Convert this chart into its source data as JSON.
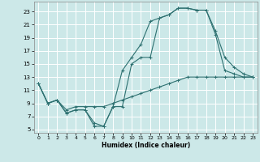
{
  "xlabel": "Humidex (Indice chaleur)",
  "background_color": "#cce8e8",
  "grid_color": "#ffffff",
  "line_color": "#2d7070",
  "xlim": [
    -0.5,
    23.5
  ],
  "ylim": [
    4.5,
    24.5
  ],
  "xticks": [
    0,
    1,
    2,
    3,
    4,
    5,
    6,
    7,
    8,
    9,
    10,
    11,
    12,
    13,
    14,
    15,
    16,
    17,
    18,
    19,
    20,
    21,
    22,
    23
  ],
  "yticks": [
    5,
    7,
    9,
    11,
    13,
    15,
    17,
    19,
    21,
    23
  ],
  "line1_x": [
    0,
    1,
    2,
    3,
    4,
    5,
    6,
    7,
    8,
    9,
    10,
    11,
    12,
    13,
    14,
    15,
    16,
    17,
    18,
    19,
    20,
    21,
    22,
    23
  ],
  "line1_y": [
    12,
    9,
    9.5,
    7.5,
    8,
    8,
    6,
    5.5,
    8.5,
    14,
    16,
    18,
    21.5,
    22,
    22.5,
    23.5,
    23.5,
    23.2,
    23.2,
    20,
    16,
    14.5,
    13.5,
    13
  ],
  "line2_x": [
    0,
    1,
    2,
    3,
    4,
    5,
    6,
    7,
    8,
    9,
    10,
    11,
    12,
    13,
    14,
    15,
    16,
    17,
    18,
    19,
    20,
    21,
    22,
    23
  ],
  "line2_y": [
    12,
    9,
    9.5,
    7.5,
    8,
    8,
    5.5,
    5.5,
    8.5,
    8.5,
    15,
    16,
    16,
    22,
    22.5,
    23.5,
    23.5,
    23.2,
    23.2,
    19.5,
    14,
    13.5,
    13,
    13
  ],
  "line3_x": [
    0,
    1,
    2,
    3,
    4,
    5,
    6,
    7,
    8,
    9,
    10,
    11,
    12,
    13,
    14,
    15,
    16,
    17,
    18,
    19,
    20,
    21,
    22,
    23
  ],
  "line3_y": [
    12,
    9,
    9.5,
    8,
    8.5,
    8.5,
    8.5,
    8.5,
    9,
    9.5,
    10,
    10.5,
    11,
    11.5,
    12,
    12.5,
    13,
    13,
    13,
    13,
    13,
    13,
    13,
    13
  ]
}
